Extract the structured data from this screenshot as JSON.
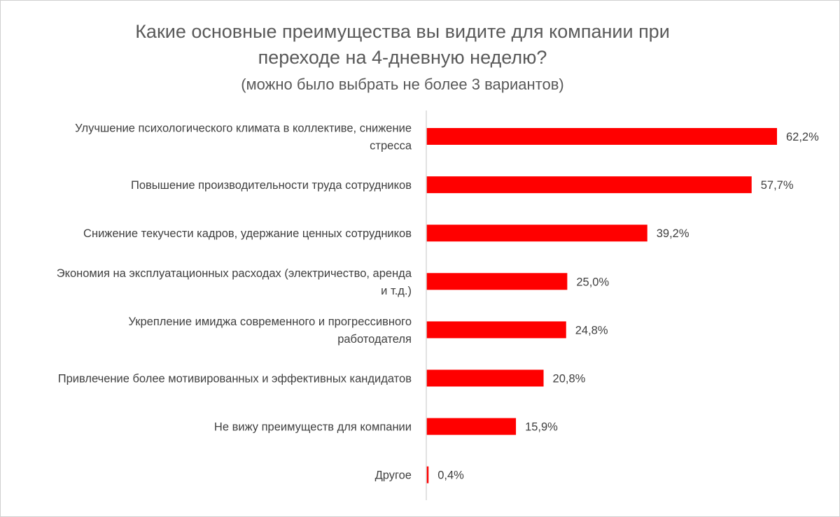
{
  "chart_data": {
    "type": "bar",
    "orientation": "horizontal",
    "title_lines": [
      "Какие основные преимущества вы видите для компании при",
      "переходе на 4-дневную неделю?"
    ],
    "subtitle": "(можно было выбрать не более 3 вариантов)",
    "categories": [
      [
        "Улучшение психологического климата в коллективе, снижение",
        "стресса"
      ],
      [
        "Повышение производительности труда сотрудников"
      ],
      [
        "Снижение текучести кадров, удержание ценных сотрудников"
      ],
      [
        "Экономия на эксплуатационных расходах (электричество, аренда",
        "и т.д.)"
      ],
      [
        "Укрепление имиджа современного и прогрессивного",
        "работодателя"
      ],
      [
        "Привлечение более мотивированных и эффективных кандидатов"
      ],
      [
        "Не вижу преимуществ для компании"
      ],
      [
        "Другое"
      ]
    ],
    "values": [
      62.2,
      57.7,
      39.2,
      25.0,
      24.8,
      20.8,
      15.9,
      0.4
    ],
    "value_labels": [
      "62,2%",
      "57,7%",
      "39,2%",
      "25,0%",
      "24,8%",
      "20,8%",
      "15,9%",
      "0,4%"
    ],
    "unit": "%",
    "xlim": [
      0,
      62.2
    ],
    "grid": false,
    "legend": "none",
    "bar_color": "#ff0000"
  }
}
